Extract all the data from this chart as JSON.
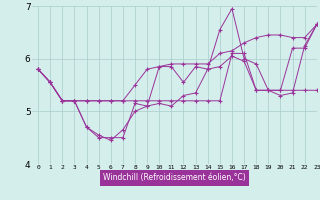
{
  "xlabel": "Windchill (Refroidissement éolien,°C)",
  "xlim": [
    -0.5,
    23
  ],
  "ylim": [
    4,
    7
  ],
  "yticks": [
    4,
    5,
    6,
    7
  ],
  "xticks": [
    0,
    1,
    2,
    3,
    4,
    5,
    6,
    7,
    8,
    9,
    10,
    11,
    12,
    13,
    14,
    15,
    16,
    17,
    18,
    19,
    20,
    21,
    22,
    23
  ],
  "bg_color": "#d4eeec",
  "line_color": "#993399",
  "grid_color": "#a8ccca",
  "lines": [
    [
      5.8,
      5.55,
      5.2,
      5.2,
      4.7,
      4.55,
      4.45,
      4.65,
      5.0,
      5.1,
      5.85,
      5.85,
      5.55,
      5.85,
      5.8,
      6.55,
      6.95,
      6.0,
      5.9,
      5.4,
      5.4,
      6.2,
      6.2,
      6.65
    ],
    [
      5.8,
      5.55,
      5.2,
      5.2,
      4.7,
      4.5,
      4.5,
      4.5,
      5.15,
      5.1,
      5.15,
      5.1,
      5.3,
      5.35,
      5.8,
      5.85,
      6.05,
      5.95,
      5.4,
      5.4,
      5.3,
      5.35,
      6.25,
      6.65
    ],
    [
      5.8,
      5.55,
      5.2,
      5.2,
      5.2,
      5.2,
      5.2,
      5.2,
      5.2,
      5.2,
      5.2,
      5.2,
      5.2,
      5.2,
      5.2,
      5.2,
      6.1,
      6.1,
      5.4,
      5.4,
      5.4,
      5.4,
      5.4,
      5.4
    ],
    [
      5.8,
      5.55,
      5.2,
      5.2,
      5.2,
      5.2,
      5.2,
      5.2,
      5.5,
      5.8,
      5.85,
      5.9,
      5.9,
      5.9,
      5.9,
      6.1,
      6.15,
      6.3,
      6.4,
      6.45,
      6.45,
      6.4,
      6.4,
      6.65
    ]
  ]
}
